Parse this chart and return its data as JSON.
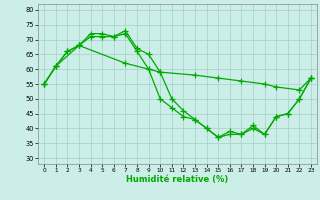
{
  "xlabel": "Humidité relative (%)",
  "background_color": "#cceee8",
  "grid_color": "#aad4cc",
  "line_color": "#00aa00",
  "xlim": [
    -0.5,
    23.5
  ],
  "ylim": [
    28,
    82
  ],
  "yticks": [
    30,
    35,
    40,
    45,
    50,
    55,
    60,
    65,
    70,
    75,
    80
  ],
  "xticks": [
    0,
    1,
    2,
    3,
    4,
    5,
    6,
    7,
    8,
    9,
    10,
    11,
    12,
    13,
    14,
    15,
    16,
    17,
    18,
    19,
    20,
    21,
    22,
    23
  ],
  "series1_x": [
    0,
    1,
    2,
    3,
    4,
    5,
    6,
    7,
    8,
    9,
    10,
    11,
    12,
    13,
    14,
    15,
    16,
    17,
    18,
    19,
    20,
    21,
    22,
    23
  ],
  "series1_y": [
    55,
    61,
    66,
    68,
    71,
    71,
    71,
    72,
    66,
    60,
    50,
    47,
    44,
    43,
    40,
    37,
    39,
    38,
    40,
    38,
    44,
    45,
    50,
    57
  ],
  "series2_x": [
    0,
    1,
    2,
    3,
    4,
    5,
    6,
    7,
    8,
    9,
    10,
    11,
    12,
    13,
    14,
    15,
    16,
    17,
    18,
    19,
    20,
    21,
    22,
    23
  ],
  "series2_y": [
    55,
    61,
    66,
    68,
    72,
    72,
    71,
    73,
    67,
    65,
    59,
    50,
    46,
    43,
    40,
    37,
    38,
    38,
    41,
    38,
    44,
    45,
    50,
    57
  ],
  "series3_x": [
    0,
    1,
    3,
    7,
    9,
    10,
    13,
    15,
    17,
    19,
    20,
    22,
    23
  ],
  "series3_y": [
    55,
    61,
    68,
    62,
    60,
    59,
    58,
    57,
    56,
    55,
    54,
    53,
    57
  ],
  "marker": "+",
  "markersize": 4,
  "linewidth": 0.9
}
